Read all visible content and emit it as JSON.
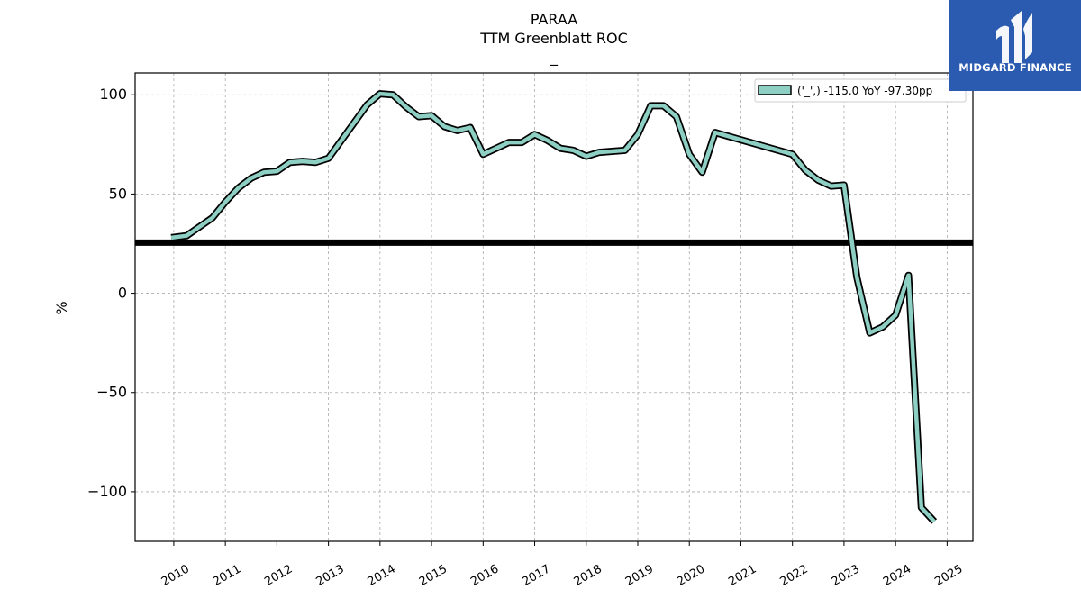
{
  "chart_data": {
    "type": "line",
    "title": "PARAA",
    "subtitle": "TTM Greenblatt ROC",
    "subtitle2": "_",
    "ylabel": "%",
    "xlabel": "",
    "ylim": [
      -125,
      111
    ],
    "xlim": [
      2009.25,
      2025.5
    ],
    "yticks": [
      100,
      50,
      0,
      -50,
      -100
    ],
    "ytick_labels": [
      "100",
      "50",
      "0",
      "−50",
      "−100"
    ],
    "xticks": [
      2010,
      2011,
      2012,
      2013,
      2014,
      2015,
      2016,
      2017,
      2018,
      2019,
      2020,
      2021,
      2022,
      2023,
      2024,
      2025
    ],
    "xtick_labels": [
      "2010",
      "2011",
      "2012",
      "2013",
      "2014",
      "2015",
      "2016",
      "2017",
      "2018",
      "2019",
      "2020",
      "2021",
      "2022",
      "2023",
      "2024",
      "2025"
    ],
    "grid": true,
    "legend_position": "top-right",
    "reference_line": 25.5,
    "series": [
      {
        "name": "('_',) -115.0 YoY -97.30pp",
        "color": "#8ecfc4",
        "edge_color": "#000000",
        "x": [
          2009.95,
          2010.25,
          2010.75,
          2011.0,
          2011.25,
          2011.5,
          2011.75,
          2012.0,
          2012.25,
          2012.5,
          2012.75,
          2013.0,
          2013.25,
          2013.5,
          2013.75,
          2014.0,
          2014.25,
          2014.5,
          2014.75,
          2015.0,
          2015.25,
          2015.5,
          2015.75,
          2016.0,
          2016.25,
          2016.5,
          2016.75,
          2017.0,
          2017.25,
          2017.5,
          2017.75,
          2018.0,
          2018.25,
          2018.5,
          2018.75,
          2019.0,
          2019.25,
          2019.5,
          2019.75,
          2020.0,
          2020.25,
          2020.5,
          2022.0,
          2022.25,
          2022.5,
          2022.75,
          2023.0,
          2023.25,
          2023.5,
          2023.75,
          2024.0,
          2024.25,
          2024.5,
          2024.75
        ],
        "values": [
          28,
          29,
          38,
          46,
          53,
          58,
          61,
          61.5,
          66,
          66.5,
          66,
          68,
          77,
          86,
          95,
          100.5,
          100,
          94,
          89,
          89.5,
          84,
          82,
          83.5,
          70,
          73,
          76,
          76,
          80,
          77,
          73,
          72,
          69,
          71,
          71.5,
          72,
          80,
          94.5,
          94.5,
          89,
          70,
          61,
          81,
          70,
          62,
          57,
          54,
          54.5,
          8,
          -20,
          -17,
          -11,
          9,
          -108,
          -115
        ]
      }
    ]
  },
  "logo": {
    "text": "MIDGARD FINANCE"
  }
}
